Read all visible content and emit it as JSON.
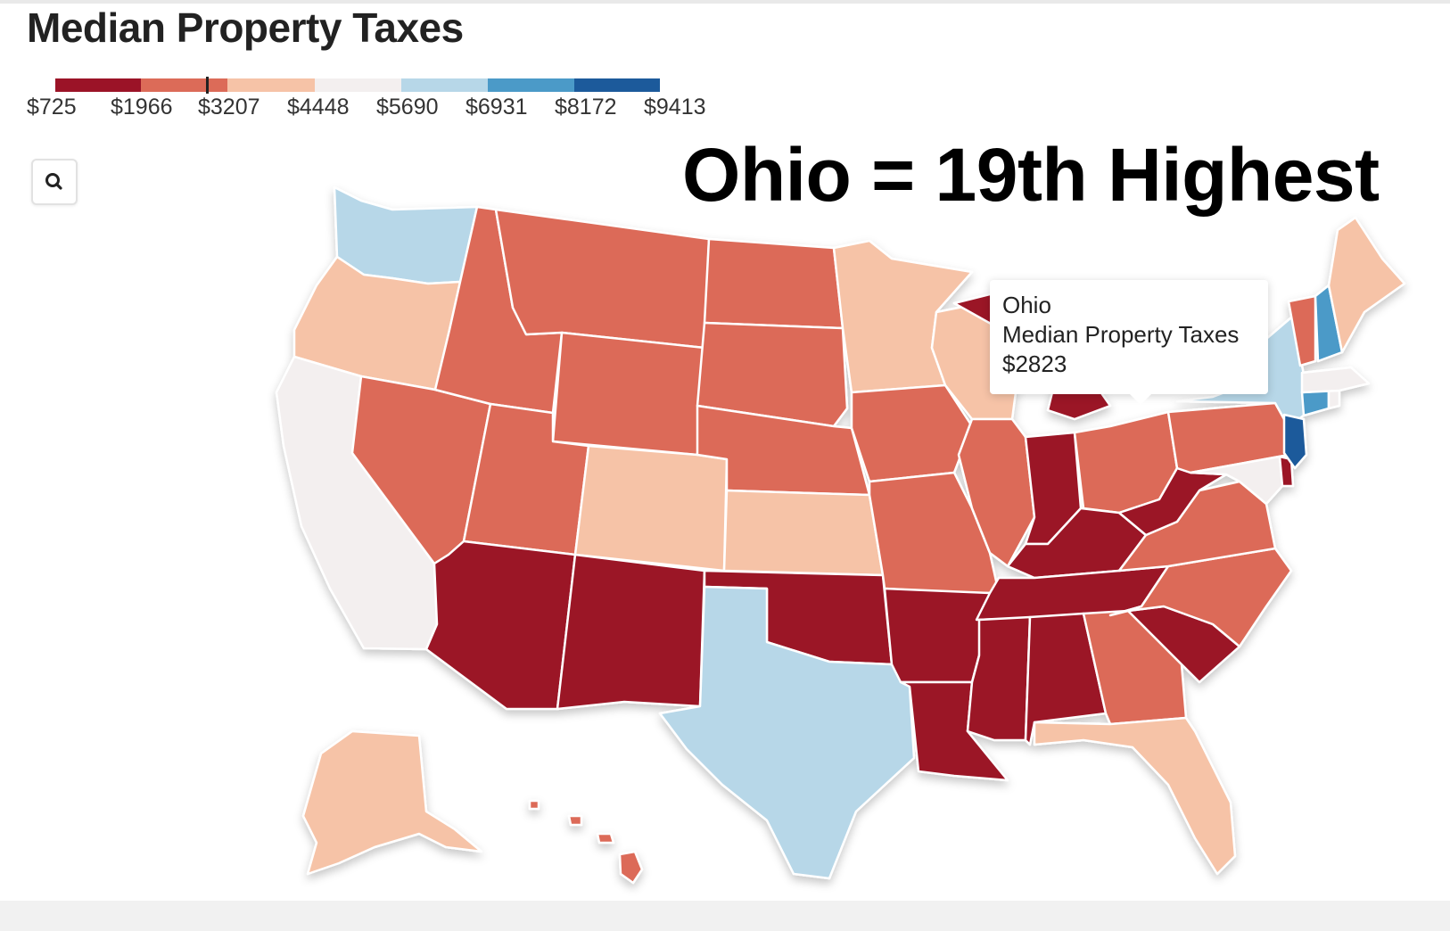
{
  "title": "Median Property Taxes",
  "headline": "Ohio = 19th Highest",
  "legend": {
    "labels": [
      "$725",
      "$1966",
      "$3207",
      "$4448",
      "$5690",
      "$6931",
      "$8172",
      "$9413"
    ],
    "colors": [
      "#9b1327",
      "#dc6b58",
      "#f6c3a7",
      "#f3efef",
      "#b7d7e8",
      "#4b9ac8",
      "#1c5a9b"
    ],
    "marker_value": 2823
  },
  "tooltip": {
    "state": "Ohio",
    "metric": "Median Property Taxes",
    "value": "$2823"
  },
  "icons": {
    "search": "search-icon"
  },
  "state_colors": {
    "dark_red": "#9b1327",
    "red": "#dc6b58",
    "peach": "#f6c3a7",
    "gray": "#f3efef",
    "light_blue": "#b7d7e8",
    "blue": "#4b9ac8",
    "dark_blue": "#1c5a9b"
  }
}
